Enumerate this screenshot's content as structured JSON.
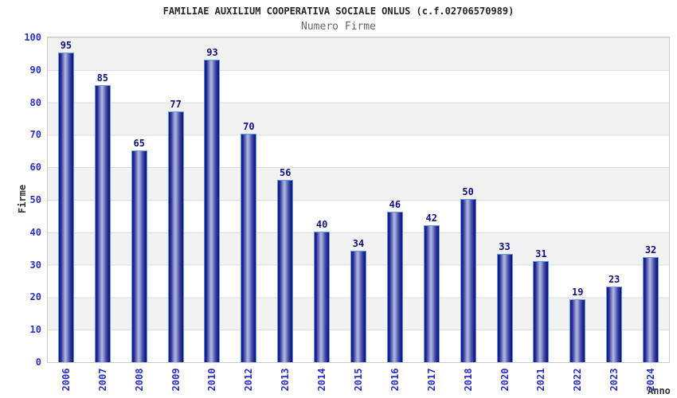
{
  "chart_data": {
    "type": "bar",
    "title": "FAMILIAE AUXILIUM COOPERATIVA SOCIALE ONLUS (c.f.02706570989)",
    "subtitle": "Numero Firme",
    "xlabel": "Anno",
    "ylabel": "Firme",
    "categories": [
      "2006",
      "2007",
      "2008",
      "2009",
      "2010",
      "2012",
      "2013",
      "2014",
      "2015",
      "2016",
      "2017",
      "2018",
      "2020",
      "2021",
      "2022",
      "2023",
      "2024"
    ],
    "values": [
      95,
      85,
      65,
      77,
      93,
      70,
      56,
      40,
      34,
      46,
      42,
      50,
      33,
      31,
      19,
      23,
      32
    ],
    "ylim": [
      0,
      100
    ],
    "ytick_step": 10,
    "yticks": [
      0,
      10,
      20,
      30,
      40,
      50,
      60,
      70,
      80,
      90,
      100
    ],
    "legend": "none",
    "grid": "horizontal-bands",
    "colors": {
      "bar_edge_dark": "#18186e",
      "bar_center_light": "#aeb5de",
      "bar_outline": "#5e9be0",
      "axis_tick_label": "#2a2fc4",
      "value_label": "#12127c",
      "band_gray": "#f2f2f2",
      "grid_line": "#dedede",
      "plot_border": "#c9c9c9",
      "title_color": "#262626",
      "subtitle_color": "#666666",
      "axis_title_color": "#333333"
    }
  }
}
